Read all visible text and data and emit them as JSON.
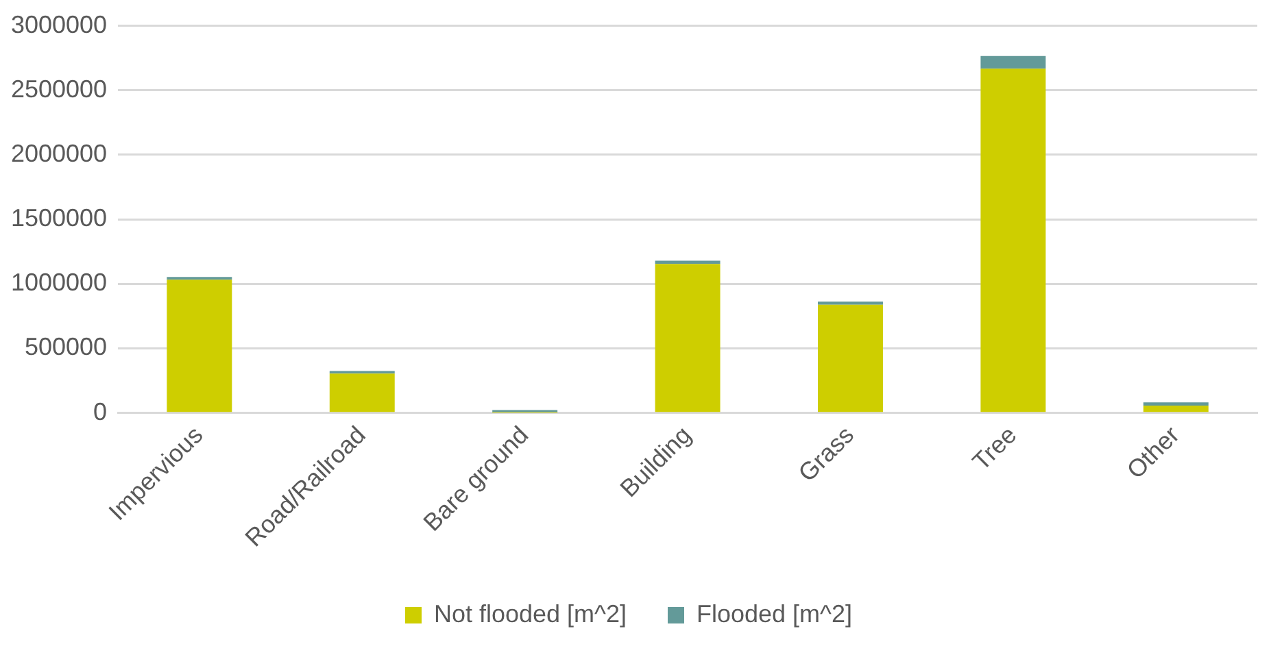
{
  "chart_data": {
    "type": "bar",
    "stacked": true,
    "categories": [
      "Impervious",
      "Road/Railroad",
      "Bare ground",
      "Building",
      "Grass",
      "Tree",
      "Other"
    ],
    "series": [
      {
        "name": "Not flooded [m^2]",
        "color": "#cece00",
        "values": [
          1033000,
          305000,
          3000,
          1155000,
          838000,
          2667000,
          57000
        ]
      },
      {
        "name": "Flooded [m^2]",
        "color": "#639a99",
        "values": [
          20000,
          20000,
          20000,
          25000,
          25000,
          98000,
          25000
        ]
      }
    ],
    "ylim": [
      0,
      3000000
    ],
    "yticks": [
      0,
      500000,
      1000000,
      1500000,
      2000000,
      2500000,
      3000000
    ],
    "grid": "y",
    "legend": "bottom"
  }
}
